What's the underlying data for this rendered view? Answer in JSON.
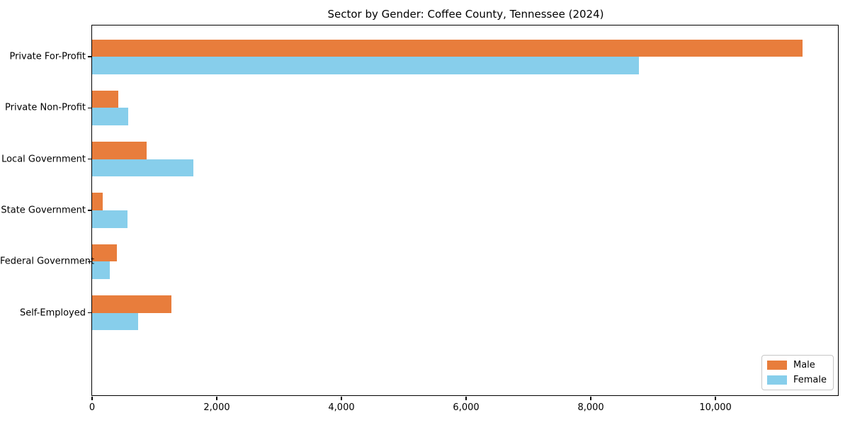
{
  "title": "Sector by Gender: Coffee County, Tennessee (2024)",
  "chart_data": {
    "type": "bar",
    "orientation": "horizontal",
    "title": "Sector by Gender: Coffee County, Tennessee (2024)",
    "categories": [
      "Private For-Profit",
      "Private Non-Profit",
      "Local Government",
      "State Government",
      "Federal Government",
      "Self-Employed"
    ],
    "series": [
      {
        "name": "Male",
        "color": "#e87d3c",
        "values": [
          11400,
          420,
          875,
          170,
          400,
          1270
        ]
      },
      {
        "name": "Female",
        "color": "#87ceeb",
        "values": [
          8775,
          575,
          1620,
          570,
          285,
          740
        ]
      }
    ],
    "xlabel": "",
    "ylabel": "",
    "xlim": [
      0,
      11965
    ],
    "x_ticks": [
      {
        "value": 0,
        "label": "0"
      },
      {
        "value": 2000,
        "label": "2,000"
      },
      {
        "value": 4000,
        "label": "4,000"
      },
      {
        "value": 6000,
        "label": "6,000"
      },
      {
        "value": 8000,
        "label": "8,000"
      },
      {
        "value": 10000,
        "label": "10,000"
      }
    ],
    "grid": false,
    "legend_position": "lower right"
  }
}
